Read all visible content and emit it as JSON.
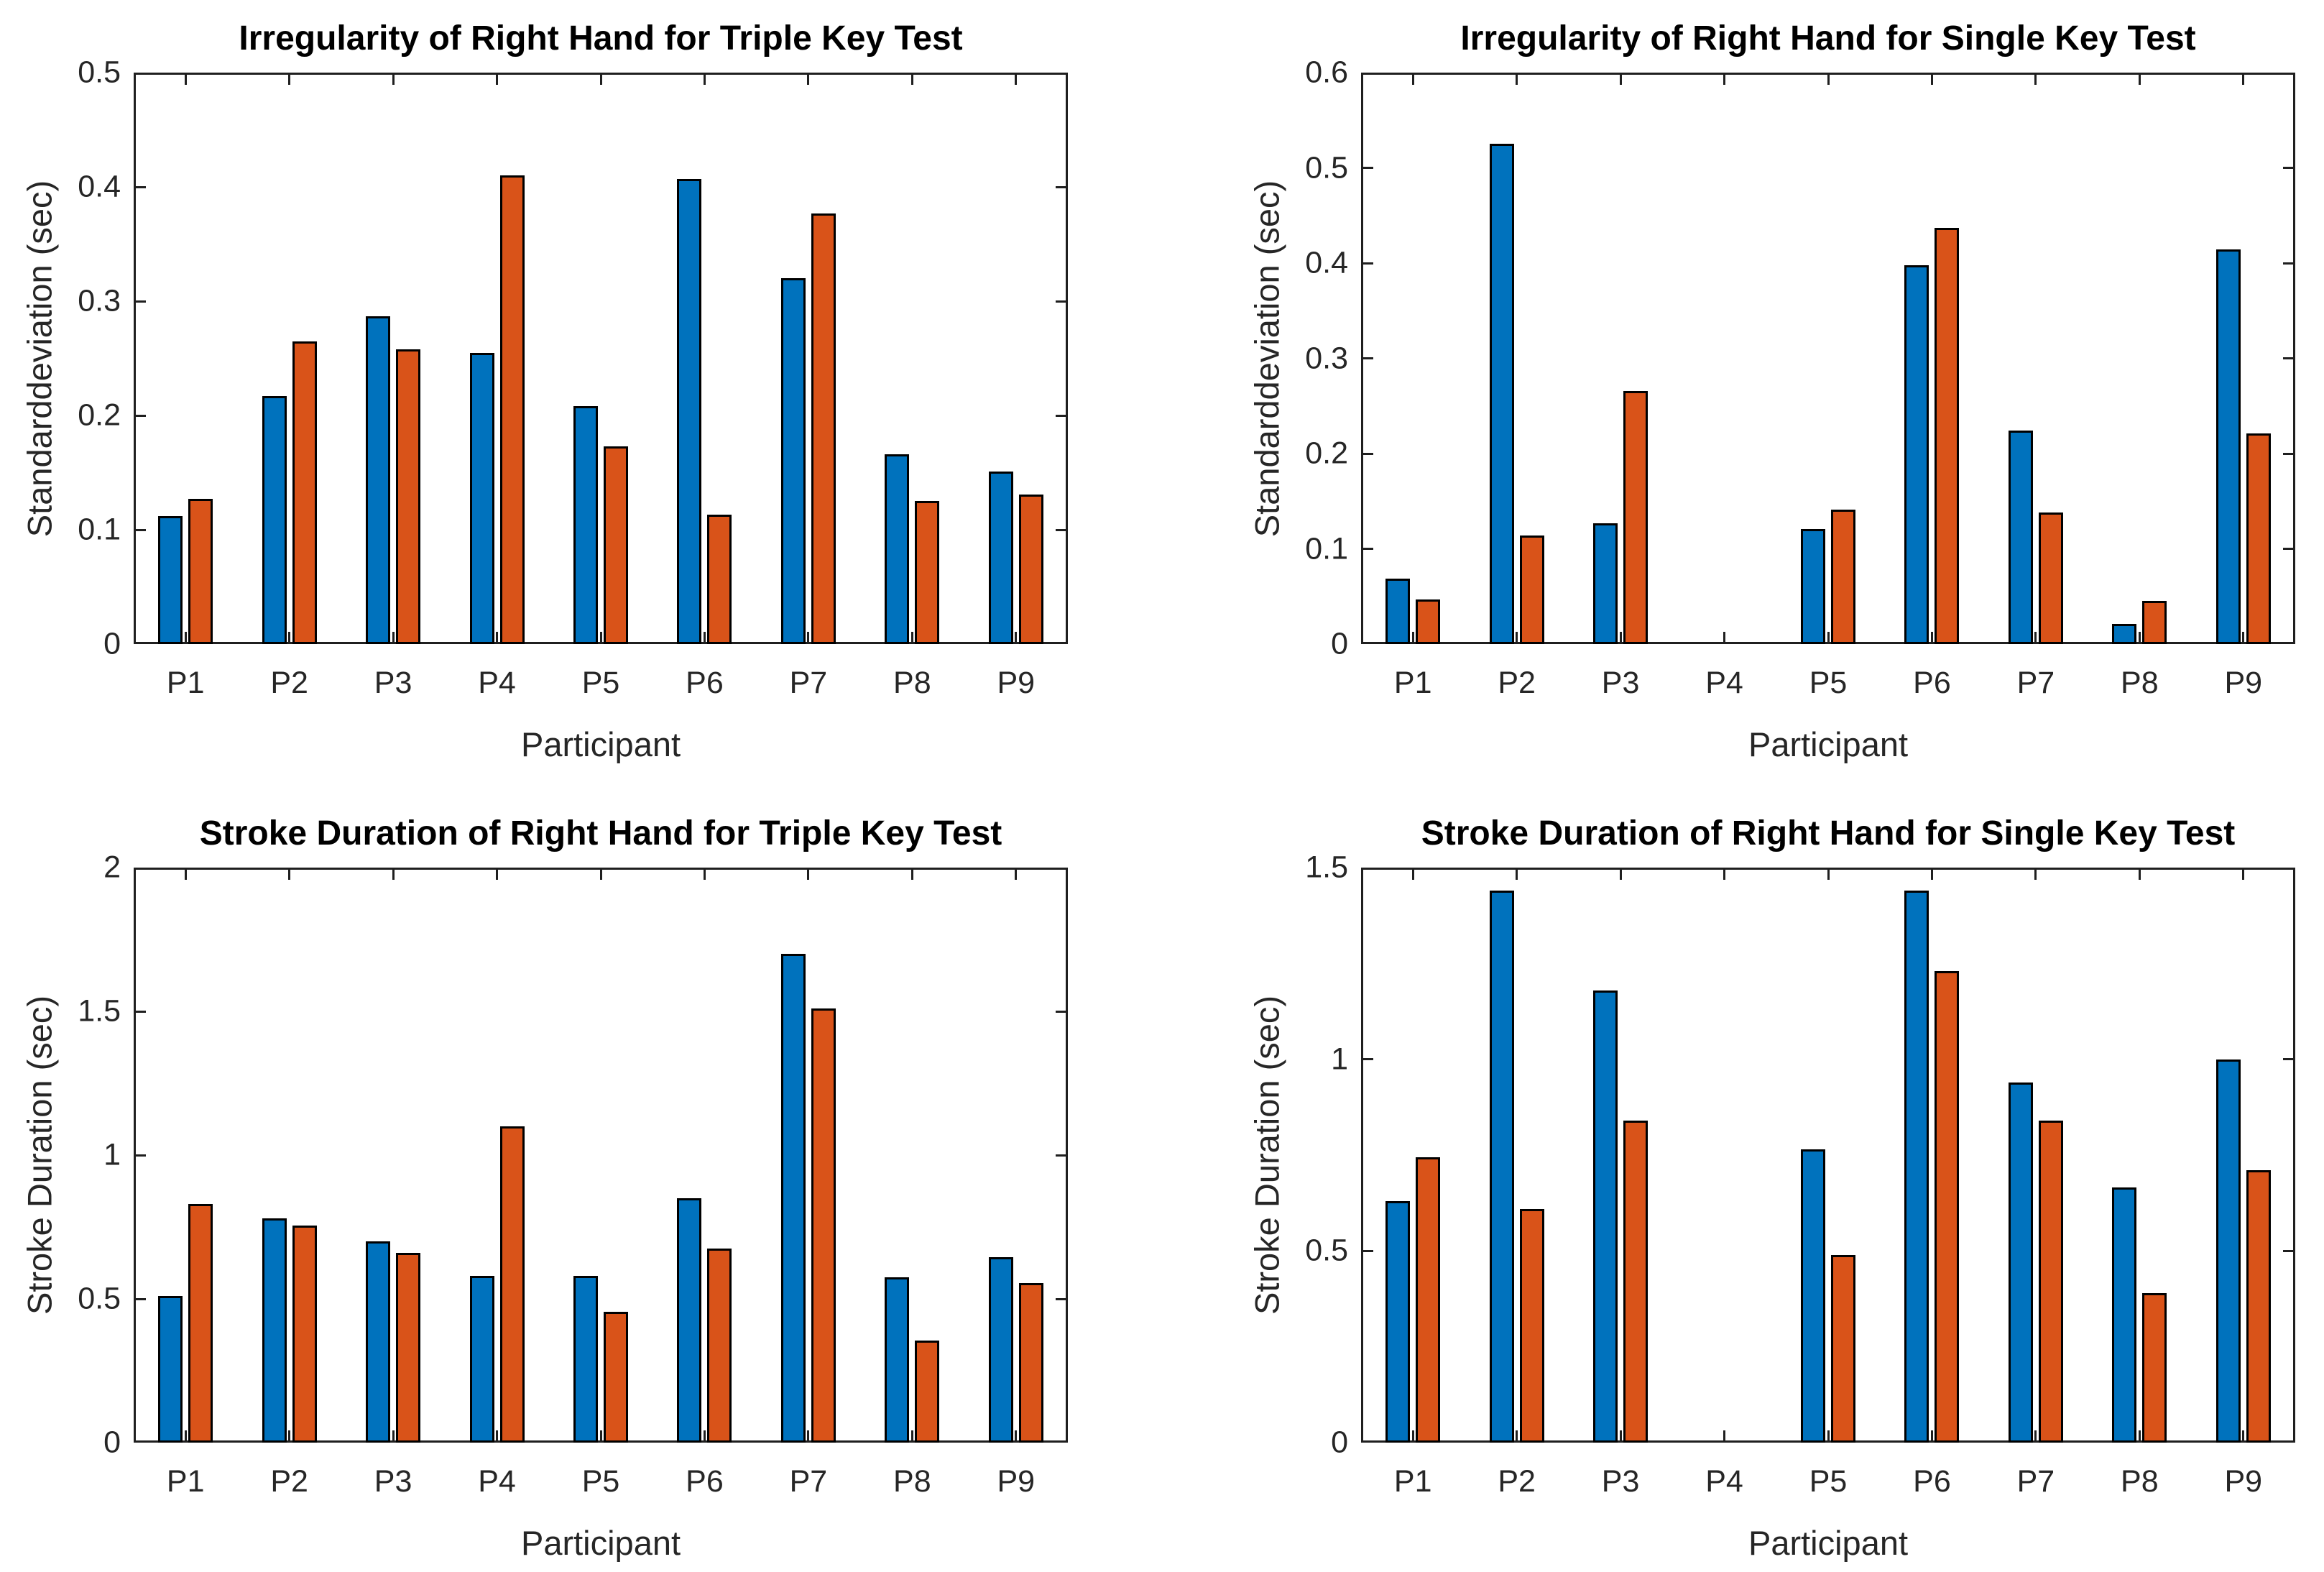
{
  "figure": {
    "background": "#ffffff"
  },
  "colors": {
    "series_blue": "#0072BD",
    "series_orange": "#D95319",
    "bar_edge": "#000000",
    "axis_line": "#1f1f1f",
    "tick_text": "#262626",
    "title_text": "#000000"
  },
  "chart_data": [
    {
      "type": "bar",
      "title": "Irregularity of Right Hand for Triple Key Test",
      "xlabel": "Participant",
      "ylabel": "Standarddeviation (sec)",
      "categories": [
        "P1",
        "P2",
        "P3",
        "P4",
        "P5",
        "P6",
        "P7",
        "P8",
        "P9"
      ],
      "series": [
        {
          "name": "blue",
          "color": "#0072BD",
          "values": [
            0.112,
            0.217,
            0.287,
            0.255,
            0.208,
            0.407,
            0.32,
            0.166,
            0.151
          ]
        },
        {
          "name": "orange",
          "color": "#D95319",
          "values": [
            0.127,
            0.265,
            0.258,
            0.41,
            0.173,
            0.113,
            0.377,
            0.125,
            0.131
          ]
        }
      ],
      "ylim": [
        0,
        0.5
      ],
      "yticks": [
        0,
        0.1,
        0.2,
        0.3,
        0.4,
        0.5
      ],
      "ytick_labels": [
        "0",
        "0.1",
        "0.2",
        "0.3",
        "0.4",
        "0.5"
      ],
      "grid": false,
      "legend": null
    },
    {
      "type": "bar",
      "title": "Irregularity of Right Hand for Single Key Test",
      "xlabel": "Participant",
      "ylabel": "Standarddeviation (sec)",
      "categories": [
        "P1",
        "P2",
        "P3",
        "P4",
        "P5",
        "P6",
        "P7",
        "P8",
        "P9"
      ],
      "series": [
        {
          "name": "blue",
          "color": "#0072BD",
          "values": [
            0.069,
            0.525,
            0.127,
            0,
            0.121,
            0.398,
            0.224,
            0.021,
            0.414
          ]
        },
        {
          "name": "orange",
          "color": "#D95319",
          "values": [
            0.047,
            0.114,
            0.266,
            0,
            0.141,
            0.437,
            0.138,
            0.045,
            0.221
          ]
        }
      ],
      "ylim": [
        0,
        0.6
      ],
      "yticks": [
        0,
        0.1,
        0.2,
        0.3,
        0.4,
        0.5,
        0.6
      ],
      "ytick_labels": [
        "0",
        "0.1",
        "0.2",
        "0.3",
        "0.4",
        "0.5",
        "0.6"
      ],
      "grid": false,
      "legend": null
    },
    {
      "type": "bar",
      "title": "Stroke Duration of Right Hand for Triple Key Test",
      "xlabel": "Participant",
      "ylabel": "Stroke Duration (sec)",
      "categories": [
        "P1",
        "P2",
        "P3",
        "P4",
        "P5",
        "P6",
        "P7",
        "P8",
        "P9"
      ],
      "series": [
        {
          "name": "blue",
          "color": "#0072BD",
          "values": [
            0.51,
            0.78,
            0.7,
            0.58,
            0.58,
            0.85,
            1.7,
            0.575,
            0.645
          ]
        },
        {
          "name": "orange",
          "color": "#D95319",
          "values": [
            0.83,
            0.755,
            0.66,
            1.1,
            0.455,
            0.675,
            1.51,
            0.355,
            0.555
          ]
        }
      ],
      "ylim": [
        0,
        2
      ],
      "yticks": [
        0,
        0.5,
        1,
        1.5,
        2
      ],
      "ytick_labels": [
        "0",
        "0.5",
        "1",
        "1.5",
        "2"
      ],
      "grid": false,
      "legend": null
    },
    {
      "type": "bar",
      "title": "Stroke Duration of Right Hand for Single Key Test",
      "xlabel": "Participant",
      "ylabel": "Stroke Duration (sec)",
      "categories": [
        "P1",
        "P2",
        "P3",
        "P4",
        "P5",
        "P6",
        "P7",
        "P8",
        "P9"
      ],
      "series": [
        {
          "name": "blue",
          "color": "#0072BD",
          "values": [
            0.63,
            1.44,
            1.18,
            0,
            0.765,
            1.44,
            0.94,
            0.665,
            1.0
          ]
        },
        {
          "name": "orange",
          "color": "#D95319",
          "values": [
            0.745,
            0.61,
            0.84,
            0,
            0.49,
            1.23,
            0.84,
            0.39,
            0.71
          ]
        }
      ],
      "ylim": [
        0,
        1.5
      ],
      "yticks": [
        0,
        0.5,
        1,
        1.5
      ],
      "ytick_labels": [
        "0",
        "0.5",
        "1",
        "1.5"
      ],
      "grid": false,
      "legend": null
    }
  ]
}
